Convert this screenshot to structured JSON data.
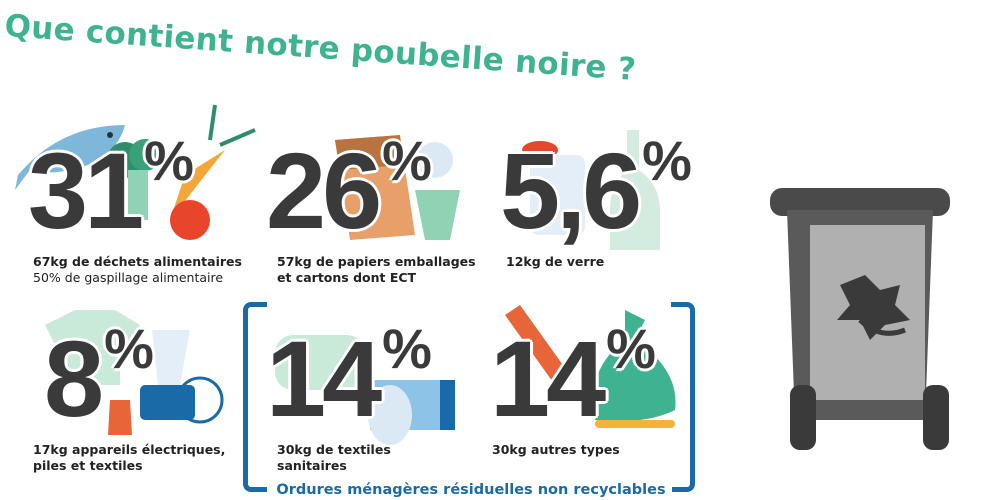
{
  "title": "Que contient notre poubelle noire ?",
  "items": [
    {
      "value": "31",
      "unit": "%",
      "line1": "67kg de déchets alimentaires",
      "line2": "50% de gaspillage alimentaire"
    },
    {
      "value": "26",
      "unit": "%",
      "line1": "57kg de papiers emballages",
      "line2": "et cartons dont ECT"
    },
    {
      "value": "5,6",
      "unit": "%",
      "line1": "12kg de verre",
      "line2": ""
    },
    {
      "value": "8",
      "unit": "%",
      "line1": "17kg appareils électriques,",
      "line2": "piles et textiles"
    },
    {
      "value": "14",
      "unit": "%",
      "line1": "30kg de textiles",
      "line2": "sanitaires"
    },
    {
      "value": "14",
      "unit": "%",
      "line1": "30kg autres types",
      "line2": ""
    }
  ],
  "group_caption": "Ordures ménagères résiduelles non recyclables",
  "colors": {
    "title": "#3fb391",
    "numbers": "#3a3a3a",
    "bracket": "#1a6aa8",
    "bin": "#5a5a5a"
  },
  "icons": [
    "fish",
    "broccoli",
    "carrot",
    "apple",
    "paper-bag",
    "cup",
    "glass-bottle",
    "jar",
    "t-shirt",
    "blender",
    "socks",
    "towels",
    "tissue-box",
    "comb",
    "trash-bag",
    "toothbrush",
    "black-bin",
    "leaf"
  ]
}
